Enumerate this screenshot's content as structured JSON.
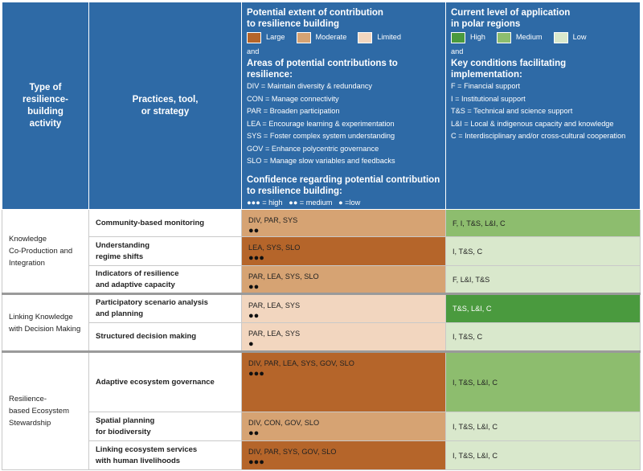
{
  "header": {
    "type_label": "Type of\nresilience-\nbuilding\nactivity",
    "practice_label": "Practices, tool,\nor strategy",
    "extent_title": "Potential extent of contribution\nto resilience building",
    "extent_legend": [
      {
        "label": "Large",
        "color": "#b5652a"
      },
      {
        "label": "Moderate",
        "color": "#d6a373"
      },
      {
        "label": "Limited",
        "color": "#f2d6bf"
      }
    ],
    "and_1": "and",
    "areas_title": "Areas of potential contributions to resilience:",
    "areas": [
      "DIV = Maintain diversity & redundancy",
      "CON = Manage connectivity",
      "PAR = Broaden participation",
      "LEA = Encourage learning & experimentation",
      "SYS = Foster complex system understanding",
      "GOV = Enhance polycentric governance",
      "SLO = Manage slow variables and feedbacks"
    ],
    "confidence_title": "Confidence regarding potential contribution\nto resilience building:",
    "confidence_legend": "●●● = high   ●● = medium   ● =low",
    "application_title": "Current level of application\nin polar regions",
    "application_legend": [
      {
        "label": "High",
        "color": "#4a9a3e"
      },
      {
        "label": "Medium",
        "color": "#8dbd6e"
      },
      {
        "label": "Low",
        "color": "#d9e8cc"
      }
    ],
    "and_2": "and",
    "conditions_title": "Key conditions facilitating implementation:",
    "conditions": [
      "F = Financial support",
      "I = Institutional support",
      "T&S = Technical and science support",
      "L&I = Local & indigenous capacity and knowledge",
      "C = Interdisciplinary and/or cross-cultural cooperation"
    ]
  },
  "groups": [
    {
      "activity": "Knowledge\nCo-Production and\nIntegration",
      "rows": [
        {
          "practice": "Community-based monitoring",
          "areas": "DIV, PAR, SYS",
          "confidence": "●●",
          "extent_color": "#d6a373",
          "conditions": "F, I, T&S, L&I, C",
          "application_color": "#8dbd6e"
        },
        {
          "practice": "Understanding\nregime shifts",
          "areas": "LEA, SYS, SLO",
          "confidence": "●●●",
          "extent_color": "#b5652a",
          "conditions": "I, T&S, C",
          "application_color": "#d9e8cc"
        },
        {
          "practice": "Indicators of resilience\nand adaptive capacity",
          "areas": "PAR, LEA, SYS, SLO",
          "confidence": "●●",
          "extent_color": "#d6a373",
          "conditions": "F, L&I, T&S",
          "application_color": "#d9e8cc"
        }
      ]
    },
    {
      "activity": "Linking Knowledge\nwith Decision Making",
      "rows": [
        {
          "practice": "Participatory scenario analysis\nand planning",
          "areas": "PAR, LEA, SYS",
          "confidence": "●●",
          "extent_color": "#f2d6bf",
          "conditions": "T&S, L&I, C",
          "application_color": "#4a9a3e"
        },
        {
          "practice": "Structured decision making",
          "areas": "PAR, LEA, SYS",
          "confidence": "●",
          "extent_color": "#f2d6bf",
          "conditions": "I, T&S, C",
          "application_color": "#d9e8cc"
        }
      ]
    },
    {
      "activity": "Resilience-\nbased Ecosystem\nStewardship",
      "rows": [
        {
          "practice": "Adaptive ecosystem governance",
          "areas": "DIV, PAR, LEA, SYS, GOV, SLO",
          "confidence": "●●●",
          "extent_color": "#b5652a",
          "conditions": "I, T&S, L&I, C",
          "application_color": "#8dbd6e"
        },
        {
          "practice": "Spatial planning\nfor biodiversity",
          "areas": "DIV, CON, GOV, SLO",
          "confidence": "●●",
          "extent_color": "#d6a373",
          "conditions": "I, T&S, L&I, C",
          "application_color": "#d9e8cc"
        },
        {
          "practice": "Linking ecosystem services\nwith human livelihoods",
          "areas": "DIV, PAR, SYS, GOV, SLO",
          "confidence": "●●●",
          "extent_color": "#b5652a",
          "conditions": "I, T&S, L&I, C",
          "application_color": "#d9e8cc"
        }
      ]
    }
  ]
}
